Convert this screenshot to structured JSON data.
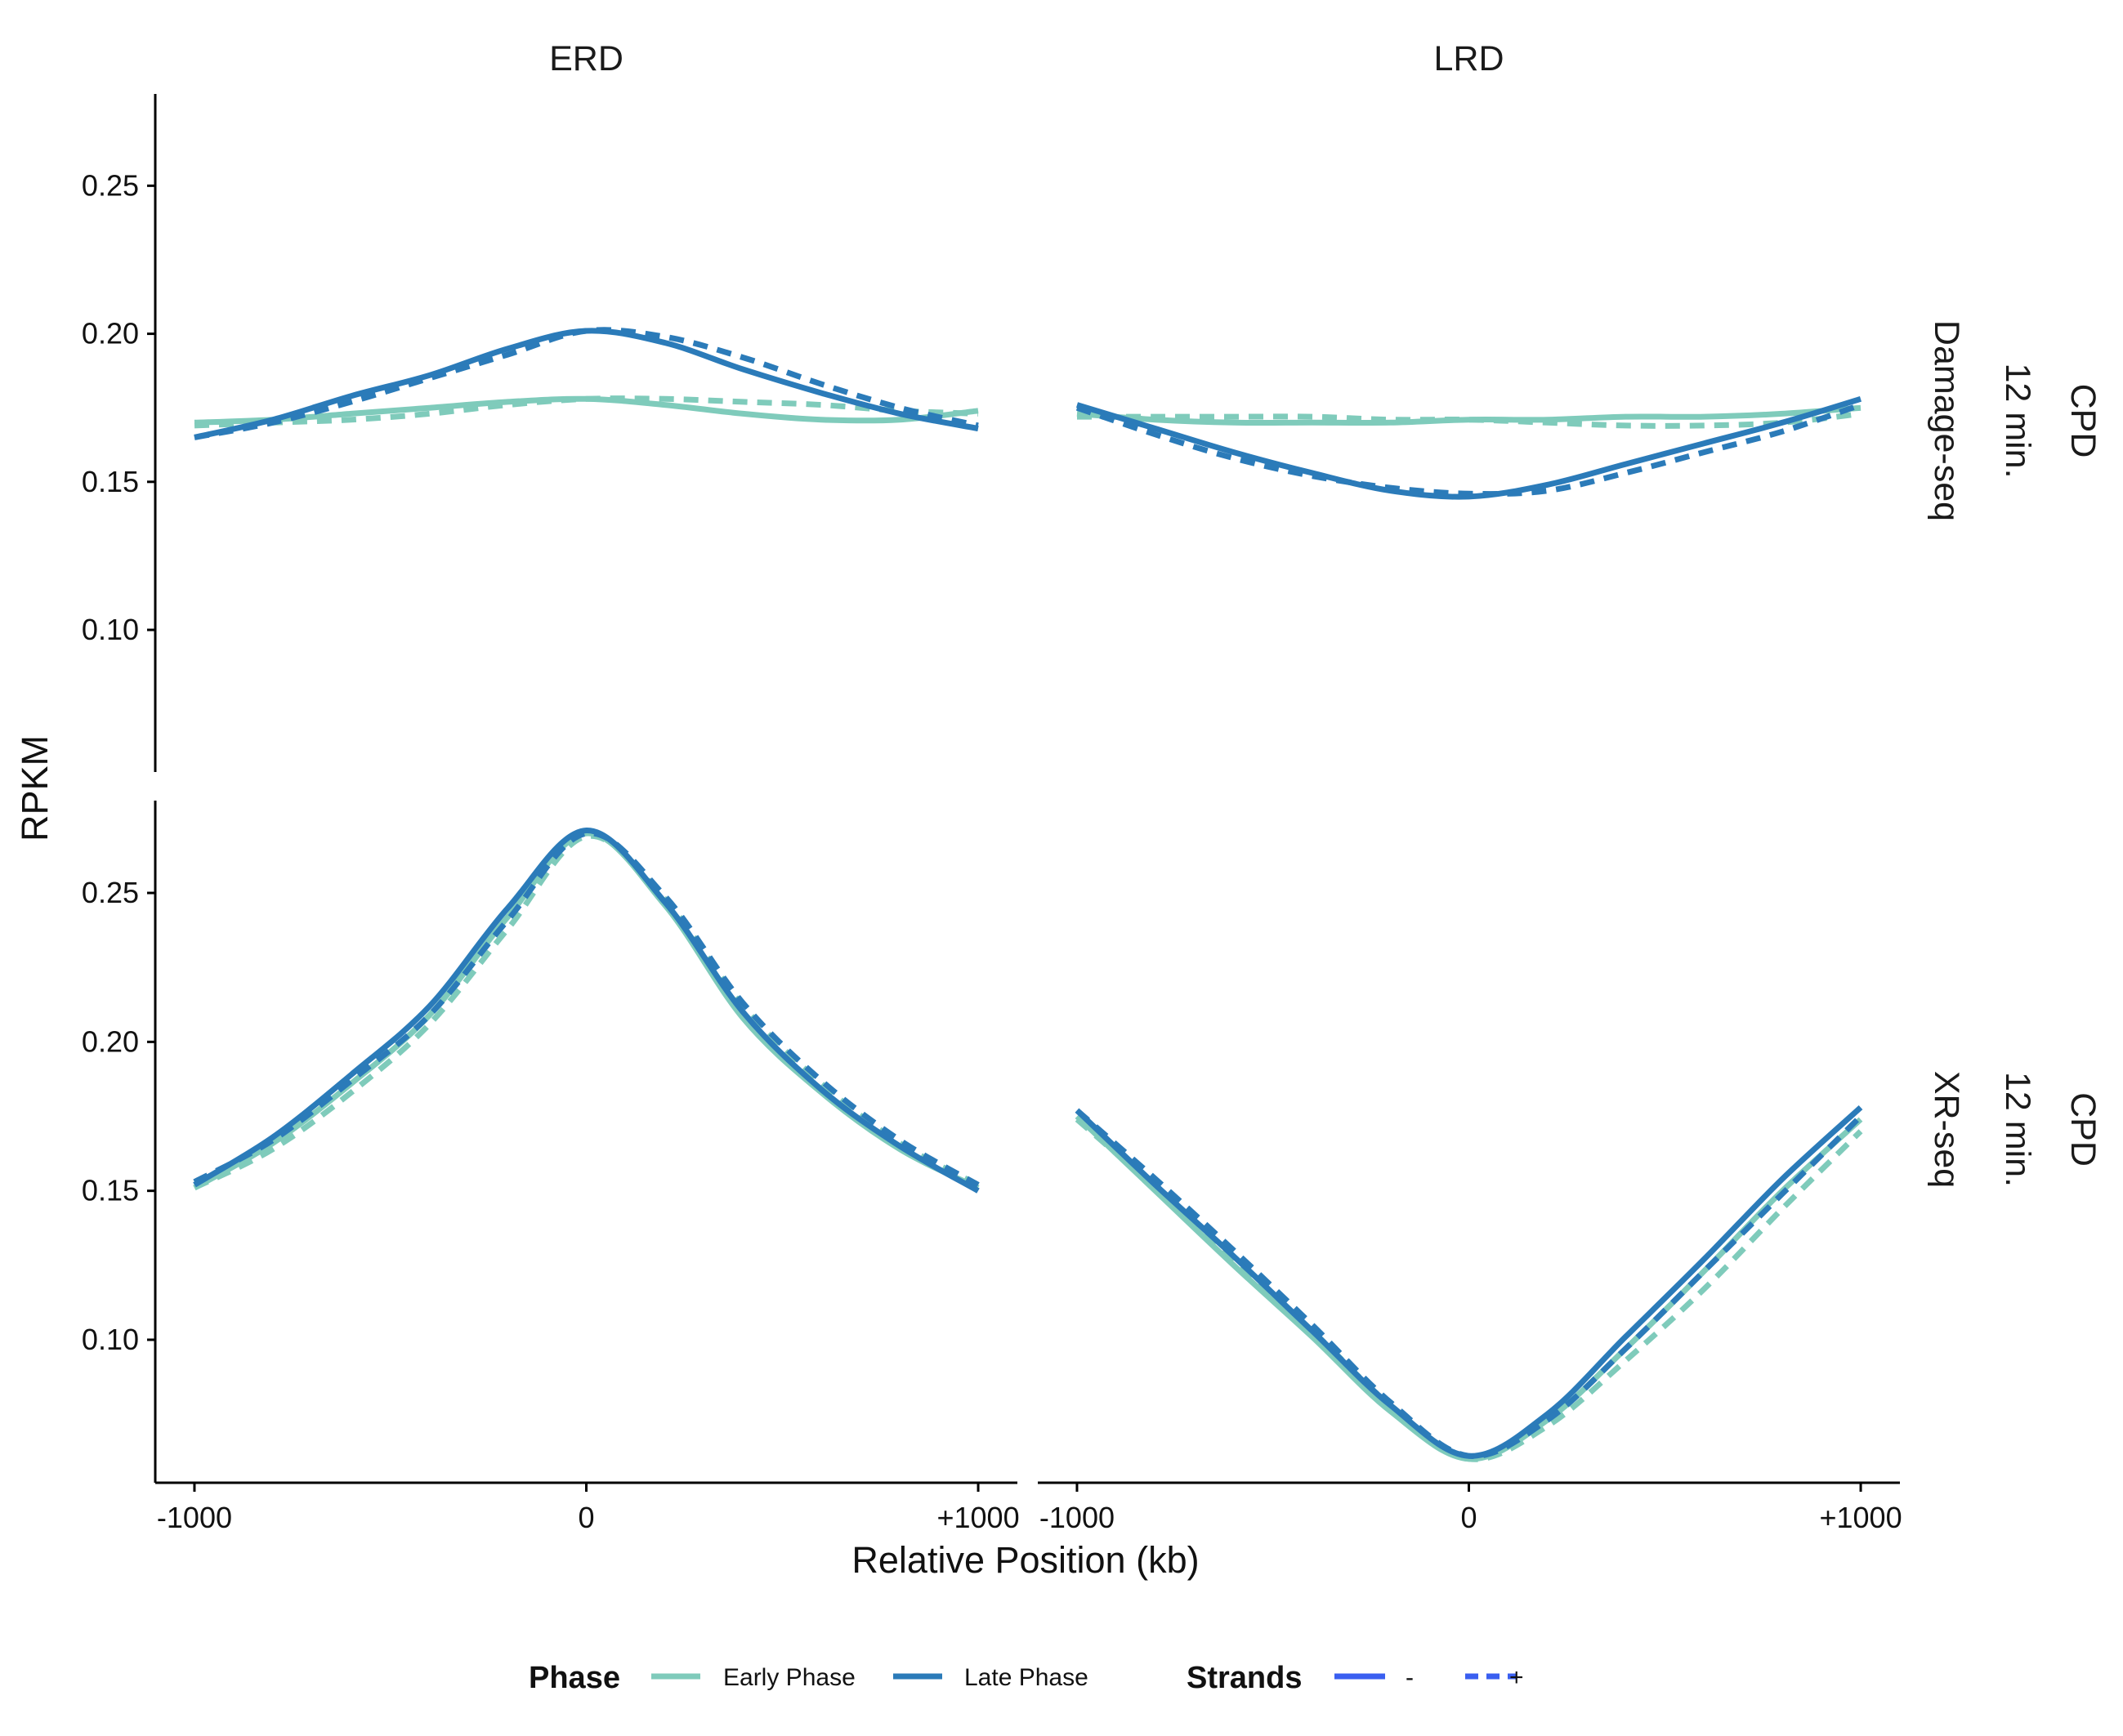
{
  "chart_data": {
    "type": "line",
    "layout": "faceted-grid",
    "xlabel": "Relative Position (kb)",
    "ylabel": "RPKM",
    "x_ticks": [
      {
        "value": -1000,
        "label": "-1000"
      },
      {
        "value": 0,
        "label": "0"
      },
      {
        "value": 1000,
        "label": "+1000"
      }
    ],
    "y_ticks": [
      {
        "value": 0.1,
        "label": "0.10"
      },
      {
        "value": 0.15,
        "label": "0.15"
      },
      {
        "value": 0.2,
        "label": "0.20"
      },
      {
        "value": 0.25,
        "label": "0.25"
      }
    ],
    "xlim": [
      -1100,
      1100
    ],
    "ylim": [
      0.052,
      0.281
    ],
    "columns": [
      "ERD",
      "LRD"
    ],
    "rows": [
      {
        "label_lines": [
          "CPD",
          "12 min.",
          "Damage-seq"
        ]
      },
      {
        "label_lines": [
          "CPD",
          "12 min.",
          "XR-seq"
        ]
      }
    ],
    "colors": {
      "early": "#7fcbbb",
      "late": "#2b7bb9",
      "strand_key": "#3a5ff0"
    },
    "legend": {
      "placement": "bottom",
      "phase_title": "Phase",
      "phase_items": [
        {
          "key": "early",
          "label": "Early Phase"
        },
        {
          "key": "late",
          "label": "Late Phase"
        }
      ],
      "strand_title": "Strands",
      "strand_items": [
        {
          "dash": "solid",
          "label": "-"
        },
        {
          "dash": "dashed",
          "label": "+"
        }
      ]
    },
    "x": [
      -1000,
      -800,
      -600,
      -400,
      -200,
      0,
      200,
      400,
      600,
      800,
      1000
    ],
    "panels": [
      {
        "row": 0,
        "col": 0,
        "series": [
          {
            "phase": "early",
            "strand": "-",
            "values": [
              0.17,
              0.171,
              0.173,
              0.175,
              0.177,
              0.178,
              0.176,
              0.173,
              0.171,
              0.171,
              0.174
            ]
          },
          {
            "phase": "early",
            "strand": "+",
            "values": [
              0.169,
              0.17,
              0.171,
              0.173,
              0.176,
              0.178,
              0.178,
              0.177,
              0.176,
              0.174,
              0.173
            ]
          },
          {
            "phase": "late",
            "strand": "-",
            "values": [
              0.165,
              0.171,
              0.179,
              0.186,
              0.195,
              0.201,
              0.197,
              0.188,
              0.18,
              0.173,
              0.168
            ]
          },
          {
            "phase": "late",
            "strand": "+",
            "values": [
              0.165,
              0.17,
              0.177,
              0.185,
              0.193,
              0.201,
              0.199,
              0.192,
              0.183,
              0.175,
              0.169
            ]
          }
        ]
      },
      {
        "row": 0,
        "col": 1,
        "series": [
          {
            "phase": "early",
            "strand": "-",
            "values": [
              0.173,
              0.171,
              0.17,
              0.17,
              0.17,
              0.171,
              0.171,
              0.172,
              0.172,
              0.173,
              0.175
            ]
          },
          {
            "phase": "early",
            "strand": "+",
            "values": [
              0.172,
              0.172,
              0.172,
              0.172,
              0.171,
              0.171,
              0.17,
              0.169,
              0.169,
              0.17,
              0.173
            ]
          },
          {
            "phase": "late",
            "strand": "-",
            "values": [
              0.176,
              0.168,
              0.16,
              0.153,
              0.147,
              0.145,
              0.149,
              0.156,
              0.163,
              0.17,
              0.178
            ]
          },
          {
            "phase": "late",
            "strand": "+",
            "values": [
              0.175,
              0.166,
              0.158,
              0.152,
              0.148,
              0.146,
              0.147,
              0.153,
              0.16,
              0.167,
              0.176
            ]
          }
        ]
      },
      {
        "row": 1,
        "col": 0,
        "series": [
          {
            "phase": "early",
            "strand": "-",
            "values": [
              0.151,
              0.166,
              0.186,
              0.209,
              0.242,
              0.27,
              0.246,
              0.208,
              0.183,
              0.164,
              0.151
            ]
          },
          {
            "phase": "early",
            "strand": "+",
            "values": [
              0.151,
              0.164,
              0.183,
              0.206,
              0.238,
              0.269,
              0.248,
              0.212,
              0.186,
              0.166,
              0.152
            ]
          },
          {
            "phase": "late",
            "strand": "-",
            "values": [
              0.152,
              0.168,
              0.189,
              0.212,
              0.245,
              0.271,
              0.247,
              0.21,
              0.184,
              0.165,
              0.15
            ]
          },
          {
            "phase": "late",
            "strand": "+",
            "values": [
              0.153,
              0.167,
              0.187,
              0.209,
              0.241,
              0.27,
              0.249,
              0.213,
              0.187,
              0.167,
              0.152
            ]
          }
        ]
      },
      {
        "row": 1,
        "col": 1,
        "series": [
          {
            "phase": "early",
            "strand": "-",
            "values": [
              0.175,
              0.15,
              0.125,
              0.101,
              0.076,
              0.06,
              0.073,
              0.097,
              0.123,
              0.15,
              0.174
            ]
          },
          {
            "phase": "early",
            "strand": "+",
            "values": [
              0.174,
              0.151,
              0.127,
              0.103,
              0.078,
              0.06,
              0.071,
              0.093,
              0.117,
              0.144,
              0.17
            ]
          },
          {
            "phase": "late",
            "strand": "-",
            "values": [
              0.177,
              0.152,
              0.128,
              0.103,
              0.078,
              0.061,
              0.075,
              0.101,
              0.127,
              0.154,
              0.178
            ]
          },
          {
            "phase": "late",
            "strand": "+",
            "values": [
              0.177,
              0.154,
              0.13,
              0.105,
              0.079,
              0.061,
              0.073,
              0.097,
              0.123,
              0.149,
              0.175
            ]
          }
        ]
      }
    ]
  }
}
